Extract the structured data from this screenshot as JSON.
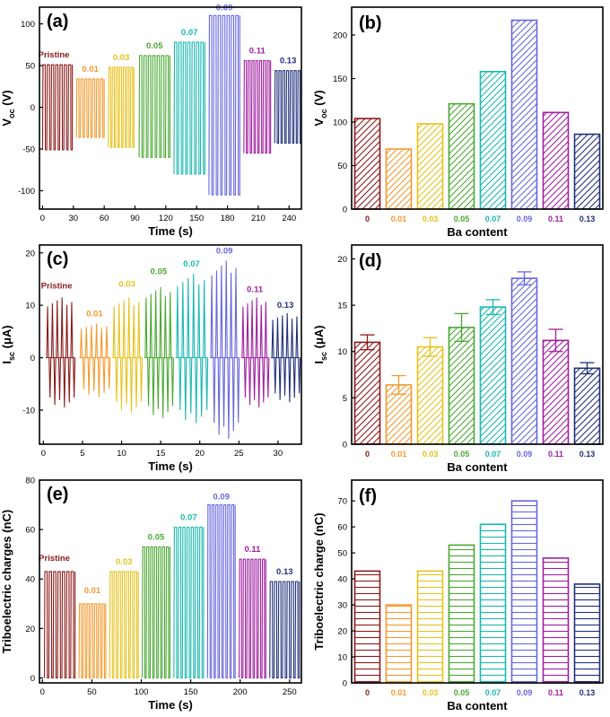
{
  "colors": {
    "pristine": "#8b1a1a",
    "c001": "#f29a2e",
    "c003": "#e6c21c",
    "c005": "#4aa832",
    "c007": "#19b8b0",
    "c009": "#6666dd",
    "c011": "#a020a0",
    "c013": "#20307a"
  },
  "chart_data": [
    {
      "id": "a",
      "panel_label": "(a)",
      "type": "line",
      "xlabel": "Time (s)",
      "ylabel_main": "V",
      "ylabel_sub": "oc",
      "ylabel_unit": " (V)",
      "xlim": [
        -3,
        252
      ],
      "ylim": [
        -122,
        120
      ],
      "xticks": [
        0,
        30,
        60,
        90,
        120,
        150,
        180,
        210,
        240
      ],
      "yticks": [
        -100,
        -50,
        0,
        50,
        100
      ],
      "segments": [
        {
          "label": "Pristine",
          "color_key": "pristine",
          "x": [
            0,
            29
          ],
          "high": 51,
          "low": -51,
          "pulses": 7
        },
        {
          "label": "0.01",
          "color_key": "c001",
          "x": [
            33,
            60
          ],
          "high": 34,
          "low": -36,
          "pulses": 7
        },
        {
          "label": "0.03",
          "color_key": "c003",
          "x": [
            64,
            89
          ],
          "high": 48,
          "low": -48,
          "pulses": 7
        },
        {
          "label": "0.05",
          "color_key": "c005",
          "x": [
            94,
            124
          ],
          "high": 62,
          "low": -60,
          "pulses": 7
        },
        {
          "label": "0.07",
          "color_key": "c007",
          "x": [
            128,
            158
          ],
          "high": 78,
          "low": -80,
          "pulses": 7
        },
        {
          "label": "0.09",
          "color_key": "c009",
          "x": [
            162,
            192
          ],
          "high": 110,
          "low": -105,
          "pulses": 7
        },
        {
          "label": "0.11",
          "color_key": "c011",
          "x": [
            196,
            222
          ],
          "high": 56,
          "low": -55,
          "pulses": 7
        },
        {
          "label": "0.13",
          "color_key": "c013",
          "x": [
            226,
            252
          ],
          "high": 44,
          "low": -43,
          "pulses": 7
        }
      ]
    },
    {
      "id": "b",
      "panel_label": "(b)",
      "type": "bar",
      "xlabel": "Ba content",
      "ylabel_main": "V",
      "ylabel_sub": "oc",
      "ylabel_unit": " (V)",
      "ylim": [
        0,
        232
      ],
      "yticks": [
        0,
        50,
        100,
        150,
        200
      ],
      "hatch": "diagonal",
      "categories": [
        "0",
        "0.01",
        "0.03",
        "0.05",
        "0.07",
        "0.09",
        "0.11",
        "0.13"
      ],
      "color_keys": [
        "pristine",
        "c001",
        "c003",
        "c005",
        "c007",
        "c009",
        "c011",
        "c013"
      ],
      "values": [
        104,
        69,
        98,
        121,
        158,
        217,
        111,
        86
      ]
    },
    {
      "id": "c",
      "panel_label": "(c)",
      "type": "line",
      "xlabel": "Time (s)",
      "ylabel_main": "I",
      "ylabel_sub": "sc",
      "ylabel_unit": " (μA)",
      "xlim": [
        -0.5,
        33
      ],
      "ylim": [
        -16.5,
        21.5
      ],
      "xticks": [
        0,
        5,
        10,
        15,
        20,
        25,
        30
      ],
      "yticks": [
        -10,
        0,
        10,
        20
      ],
      "segments": [
        {
          "label": "Pristine",
          "color_key": "pristine",
          "x": [
            0.3,
            4
          ],
          "high": 11.5,
          "low": -9.5,
          "pulses": 6
        },
        {
          "label": "0.01",
          "color_key": "c001",
          "x": [
            4.6,
            8.5
          ],
          "high": 6.5,
          "low": -7.5,
          "pulses": 6
        },
        {
          "label": "0.03",
          "color_key": "c003",
          "x": [
            8.8,
            12.6
          ],
          "high": 11.5,
          "low": -10.5,
          "pulses": 6
        },
        {
          "label": "0.05",
          "color_key": "c005",
          "x": [
            12.9,
            16.6
          ],
          "high": 13.5,
          "low": -11.5,
          "pulses": 6
        },
        {
          "label": "0.07",
          "color_key": "c007",
          "x": [
            16.9,
            21
          ],
          "high": 16,
          "low": -12.5,
          "pulses": 6
        },
        {
          "label": "0.09",
          "color_key": "c009",
          "x": [
            21.3,
            25
          ],
          "high": 18.5,
          "low": -15.5,
          "pulses": 6
        },
        {
          "label": "0.11",
          "color_key": "c011",
          "x": [
            25.3,
            28.8
          ],
          "high": 11.5,
          "low": -9.5,
          "pulses": 6
        },
        {
          "label": "0.13",
          "color_key": "c013",
          "x": [
            29.1,
            32.8
          ],
          "high": 8.5,
          "low": -8.5,
          "pulses": 6
        }
      ]
    },
    {
      "id": "d",
      "panel_label": "(d)",
      "type": "bar",
      "xlabel": "Ba content",
      "ylabel_main": "I",
      "ylabel_sub": "sc",
      "ylabel_unit": " (μA)",
      "ylim": [
        0,
        21.5
      ],
      "yticks": [
        0,
        5,
        10,
        15,
        20
      ],
      "hatch": "diagonal",
      "categories": [
        "0",
        "0.01",
        "0.03",
        "0.05",
        "0.07",
        "0.09",
        "0.11",
        "0.13"
      ],
      "color_keys": [
        "pristine",
        "c001",
        "c003",
        "c005",
        "c007",
        "c009",
        "c011",
        "c013"
      ],
      "values": [
        11,
        6.4,
        10.5,
        12.6,
        14.8,
        17.9,
        11.2,
        8.2
      ],
      "errors": [
        0.8,
        1.0,
        1.0,
        1.5,
        0.8,
        0.7,
        1.2,
        0.6
      ]
    },
    {
      "id": "e",
      "panel_label": "(e)",
      "type": "line",
      "xlabel": "Time (s)",
      "ylabel_main": "Triboelectric charges (nC)",
      "ylabel_sub": "",
      "ylabel_unit": "",
      "xlim": [
        -3,
        262
      ],
      "ylim": [
        -2,
        80
      ],
      "xticks": [
        0,
        50,
        100,
        150,
        200,
        250
      ],
      "yticks": [
        0,
        20,
        40,
        60,
        80
      ],
      "segments": [
        {
          "label": "Pristine",
          "color_key": "pristine",
          "x": [
            2,
            33
          ],
          "high": 43,
          "low": 0,
          "pulses": 7
        },
        {
          "label": "0.01",
          "color_key": "c001",
          "x": [
            37,
            64
          ],
          "high": 30,
          "low": 0,
          "pulses": 7
        },
        {
          "label": "0.03",
          "color_key": "c003",
          "x": [
            68,
            97
          ],
          "high": 43,
          "low": 0,
          "pulses": 7
        },
        {
          "label": "0.05",
          "color_key": "c005",
          "x": [
            101,
            129
          ],
          "high": 53,
          "low": 0,
          "pulses": 7
        },
        {
          "label": "0.07",
          "color_key": "c007",
          "x": [
            133,
            163
          ],
          "high": 61,
          "low": 0,
          "pulses": 7
        },
        {
          "label": "0.09",
          "color_key": "c009",
          "x": [
            167,
            195
          ],
          "high": 70,
          "low": 0,
          "pulses": 7
        },
        {
          "label": "0.11",
          "color_key": "c011",
          "x": [
            199,
            226
          ],
          "high": 48,
          "low": 0,
          "pulses": 7
        },
        {
          "label": "0.13",
          "color_key": "c013",
          "x": [
            230,
            260
          ],
          "high": 39,
          "low": 0,
          "pulses": 7
        }
      ]
    },
    {
      "id": "f",
      "panel_label": "(f)",
      "type": "bar",
      "xlabel": "Ba content",
      "ylabel_main": "Triboelectric charge (nC)",
      "ylabel_sub": "",
      "ylabel_unit": "",
      "ylim": [
        0,
        78
      ],
      "yticks": [
        0,
        10,
        20,
        30,
        40,
        50,
        60,
        70
      ],
      "hatch": "horizontal",
      "categories": [
        "0",
        "0.01",
        "0.03",
        "0.05",
        "0.07",
        "0.09",
        "0.11",
        "0.13"
      ],
      "color_keys": [
        "pristine",
        "c001",
        "c003",
        "c005",
        "c007",
        "c009",
        "c011",
        "c013"
      ],
      "values": [
        43,
        30,
        43,
        53,
        61,
        70,
        48,
        38
      ]
    }
  ]
}
